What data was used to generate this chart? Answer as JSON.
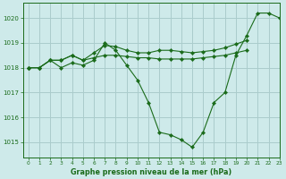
{
  "title": "Graphe pression niveau de la mer (hPa)",
  "bg_color": "#ceeaea",
  "grid_color": "#aacccc",
  "line_color": "#1a6b1a",
  "marker_color": "#1a6b1a",
  "xlim": [
    -0.5,
    23
  ],
  "ylim": [
    1014.4,
    1020.6
  ],
  "yticks": [
    1015,
    1016,
    1017,
    1018,
    1019,
    1020
  ],
  "xticks": [
    0,
    1,
    2,
    3,
    4,
    5,
    6,
    7,
    8,
    9,
    10,
    11,
    12,
    13,
    14,
    15,
    16,
    17,
    18,
    19,
    20,
    21,
    22,
    23
  ],
  "series": {
    "main": [
      1018.0,
      1018.0,
      1018.3,
      1018.0,
      1018.2,
      1018.1,
      1018.3,
      1019.0,
      1018.7,
      1018.1,
      1017.5,
      1016.6,
      1015.4,
      1015.3,
      1015.1,
      1014.8,
      1015.4,
      1016.6,
      1017.0,
      1018.5,
      1019.3,
      1020.2,
      1020.2,
      1020.0
    ],
    "flat": [
      1018.0,
      1018.0,
      1018.3,
      1018.3,
      1018.5,
      1018.3,
      1018.4,
      1018.5,
      1018.5,
      1018.45,
      1018.4,
      1018.4,
      1018.35,
      1018.35,
      1018.35,
      1018.35,
      1018.4,
      1018.45,
      1018.5,
      1018.6,
      1018.7,
      null,
      null,
      null
    ],
    "rising": [
      1018.0,
      1018.0,
      1018.3,
      1018.3,
      1018.5,
      1018.3,
      1018.6,
      1018.9,
      1018.85,
      1018.7,
      1018.6,
      1018.6,
      1018.7,
      1018.7,
      1018.65,
      1018.6,
      1018.65,
      1018.7,
      1018.8,
      1018.95,
      1019.1,
      null,
      null,
      null
    ]
  }
}
